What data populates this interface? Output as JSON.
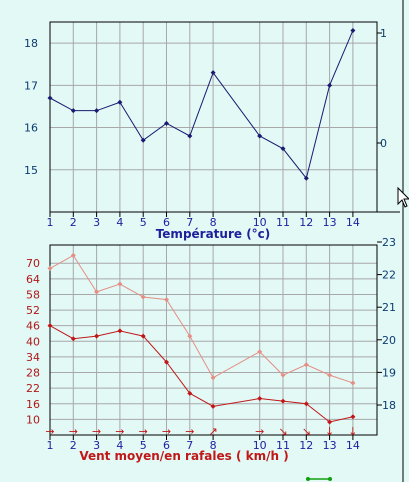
{
  "chart_data": [
    {
      "type": "line",
      "xlabel": "Température (°c)",
      "x": [
        1,
        2,
        3,
        4,
        5,
        6,
        7,
        8,
        10,
        11,
        12,
        13,
        14
      ],
      "x_tick_labels": [
        "1",
        "2",
        "3",
        "4",
        "5",
        "6",
        "7",
        "8",
        "10",
        "11",
        "12",
        "13",
        "14"
      ],
      "y_tick_labels": [
        "15",
        "16",
        "17",
        "18"
      ],
      "right_tick_labels": [
        "1",
        "0"
      ],
      "ylim": [
        14.0,
        18.5
      ],
      "grid": true,
      "series": [
        {
          "values": [
            16.7,
            16.4,
            16.4,
            16.6,
            15.7,
            16.1,
            15.8,
            17.3,
            15.8,
            15.5,
            14.8,
            17.0,
            18.3
          ]
        }
      ]
    },
    {
      "type": "line",
      "xlabel": "Vent moyen/en rafales ( km/h )",
      "x": [
        1,
        2,
        3,
        4,
        5,
        6,
        7,
        8,
        10,
        11,
        12,
        13,
        14
      ],
      "x_tick_labels": [
        "1",
        "2",
        "3",
        "4",
        "5",
        "6",
        "7",
        "8",
        "10",
        "11",
        "12",
        "13",
        "14"
      ],
      "y_tick_labels": [
        "10",
        "16",
        "22",
        "28",
        "34",
        "40",
        "46",
        "52",
        "58",
        "64",
        "70"
      ],
      "right_tick_labels": [
        "18",
        "19",
        "20",
        "21",
        "22",
        "23"
      ],
      "ylim": [
        4,
        77
      ],
      "grid": true,
      "wind_arrows": [
        "→",
        "→",
        "→",
        "→",
        "→",
        "→",
        "→",
        "↗",
        "→",
        "↘",
        "↘",
        "↓",
        "↓"
      ],
      "series": [
        {
          "values": [
            68,
            73,
            59,
            62,
            57,
            56,
            42,
            26,
            36,
            27,
            31,
            27,
            24
          ]
        },
        {
          "values": [
            46,
            41,
            42,
            44,
            42,
            32,
            20,
            15,
            18,
            17,
            16,
            9,
            11
          ]
        }
      ]
    }
  ],
  "colors": {
    "background": "#e2f9f6",
    "grid": "#a8a8a8",
    "axis": "#000000",
    "tick_text": "#0d3c72",
    "top_series": "#1a1a70",
    "top_title": "#1f1f9b",
    "gust_series": "#e48e85",
    "mean_series": "#c01818",
    "bottom_tick_text": "#b01818",
    "bottom_title": "#c01818",
    "bottom_x_tick": "#2020a0",
    "wind_arrow": "#c01818",
    "right_tick": "#0d3c72",
    "bottom_marker": "#10a010"
  }
}
